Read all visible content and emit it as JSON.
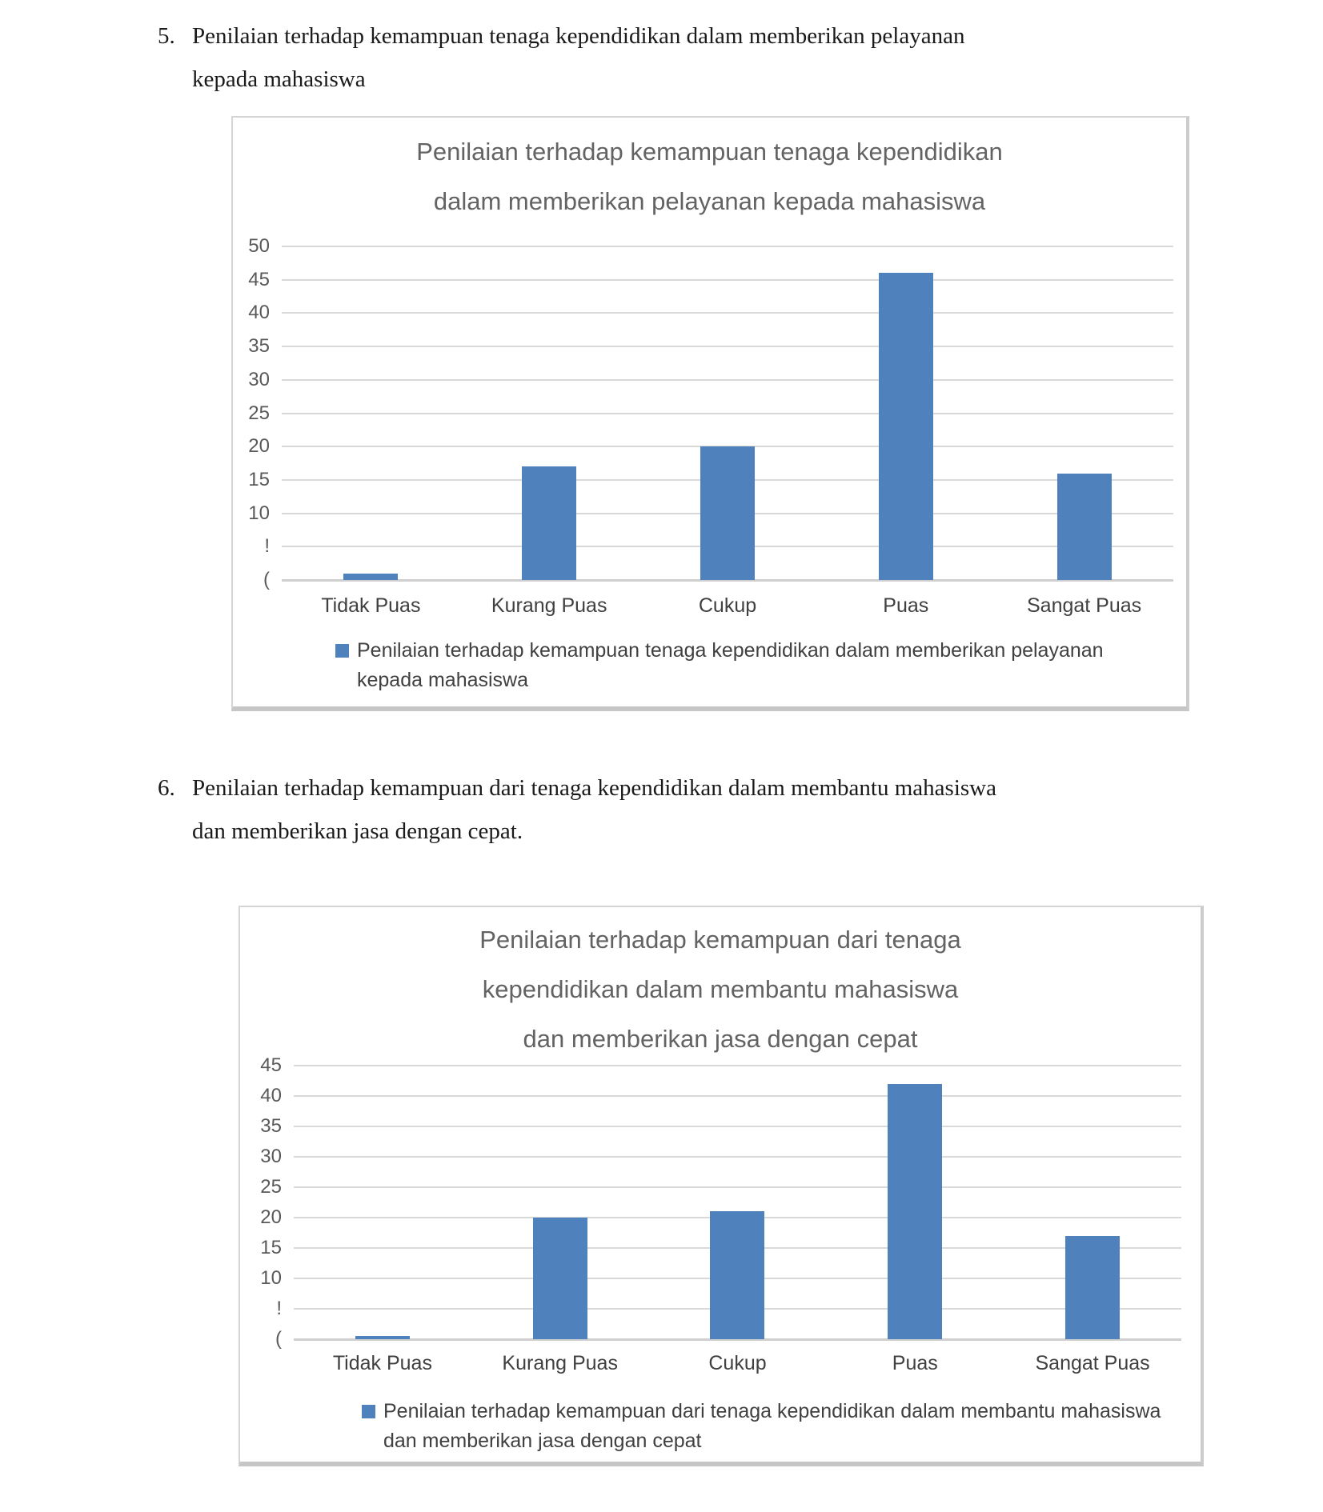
{
  "colors": {
    "bar": "#4f81bd",
    "gridline": "#d9d9d9",
    "baseline": "#cfcfcf",
    "chart_title_text": "#636363",
    "tick_text": "#595959",
    "label_text": "#404040",
    "box_border": "#d5d5d5",
    "box_shadow": "#c6c6c6"
  },
  "headings": [
    {
      "number": "5.",
      "lines": [
        "Penilaian terhadap kemampuan tenaga kependidikan dalam memberikan pelayanan",
        "kepada mahasiswa"
      ]
    },
    {
      "number": "6.",
      "lines": [
        "Penilaian terhadap kemampuan dari tenaga kependidikan dalam membantu mahasiswa",
        "dan memberikan jasa dengan cepat."
      ]
    }
  ],
  "chart_data": [
    {
      "type": "bar",
      "title": "Penilaian terhadap kemampuan tenaga kependidikan dalam memberikan pelayanan kepada mahasiswa",
      "categories": [
        "Tidak Puas",
        "Kurang Puas",
        "Cukup",
        "Puas",
        "Sangat Puas"
      ],
      "values": [
        1,
        17,
        20,
        46,
        16
      ],
      "ylim": [
        0,
        50
      ],
      "ytick_step": 5,
      "ytick_labels_displayed": [
        "50",
        "45",
        "40",
        "35",
        "30",
        "25",
        "20",
        "15",
        "10",
        "!",
        "("
      ],
      "ytick_values": [
        50,
        45,
        40,
        35,
        30,
        25,
        20,
        15,
        10,
        5,
        0
      ],
      "grid": true,
      "legend_position": "bottom",
      "legend": "Penilaian terhadap kemampuan tenaga kependidikan dalam memberikan pelayanan kepada mahasiswa",
      "xlabel": "",
      "ylabel": ""
    },
    {
      "type": "bar",
      "title": "Penilaian terhadap kemampuan dari tenaga kependidikan dalam membantu mahasiswa dan memberikan jasa dengan cepat",
      "categories": [
        "Tidak Puas",
        "Kurang Puas",
        "Cukup",
        "Puas",
        "Sangat Puas"
      ],
      "values": [
        0.5,
        20,
        21,
        42,
        17
      ],
      "ylim": [
        0,
        45
      ],
      "ytick_step": 5,
      "ytick_labels_displayed": [
        "45",
        "40",
        "35",
        "30",
        "25",
        "20",
        "15",
        "10",
        "!",
        "("
      ],
      "ytick_values": [
        45,
        40,
        35,
        30,
        25,
        20,
        15,
        10,
        5,
        0
      ],
      "grid": true,
      "legend_position": "bottom",
      "legend": "Penilaian terhadap kemampuan dari tenaga kependidikan dalam membantu mahasiswa dan memberikan jasa dengan cepat",
      "xlabel": "",
      "ylabel": ""
    }
  ]
}
